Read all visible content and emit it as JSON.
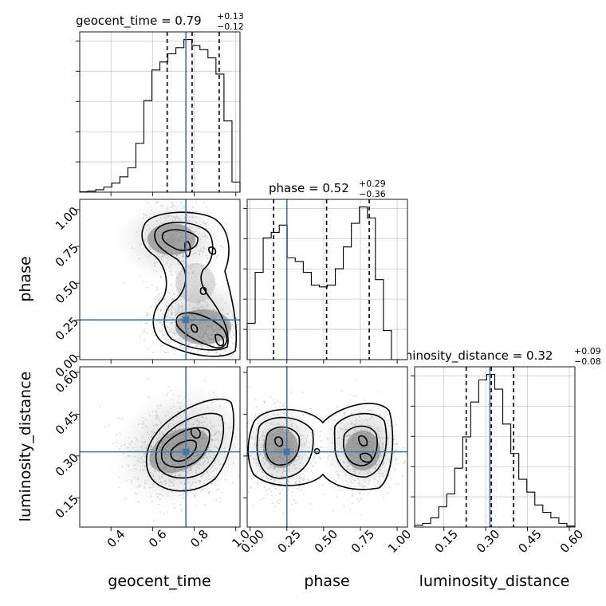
{
  "parameters": [
    "geocent_time",
    "phase",
    "luminosity_distance"
  ],
  "colors": {
    "truth": "#4577a6",
    "histogram": "#000000",
    "density": "#555555"
  },
  "diagonal_titles": [
    {
      "name": "geocent_time",
      "eq": " = 0.79",
      "sup": "+0.13",
      "sub": "−0.12"
    },
    {
      "name": "phase",
      "eq": " = 0.52",
      "sup": "+0.29",
      "sub": "−0.36"
    },
    {
      "name": "luminosity_distance",
      "eq": " = 0.32",
      "sup": "+0.09",
      "sub": "−0.08"
    }
  ],
  "axis_labels": {
    "x": [
      "geocent_time",
      "phase",
      "luminosity_distance"
    ],
    "y": [
      "phase",
      "luminosity_distance"
    ]
  },
  "chart_data": {
    "type": "corner",
    "parameters": [
      "geocent_time",
      "phase",
      "luminosity_distance"
    ],
    "truths": {
      "geocent_time": 0.76,
      "phase": 0.25,
      "luminosity_distance": 0.315
    },
    "ranges": {
      "geocent_time": [
        0.25,
        1.02
      ],
      "phase": [
        -0.02,
        1.07
      ],
      "luminosity_distance": [
        0.045,
        0.62
      ]
    },
    "ticks": {
      "geocent_time": {
        "values": [
          0.4,
          0.6,
          0.8,
          1.0
        ],
        "labels": [
          "0.4",
          "0.6",
          "0.8",
          "1.0"
        ]
      },
      "phase": {
        "values": [
          0.0,
          0.25,
          0.5,
          0.75,
          1.0
        ],
        "labels": [
          "0.00",
          "0.25",
          "0.50",
          "0.75",
          "1.00"
        ]
      },
      "luminosity_distance": {
        "values": [
          0.15,
          0.3,
          0.45,
          0.6
        ],
        "labels": [
          "0.15",
          "0.30",
          "0.45",
          "0.60"
        ]
      }
    },
    "marginals": [
      {
        "parameter": "geocent_time",
        "quantiles": [
          0.67,
          0.79,
          0.92
        ],
        "bin_edges": [
          0.25,
          0.2885,
          0.327,
          0.3655,
          0.404,
          0.4425,
          0.481,
          0.5195,
          0.558,
          0.5965,
          0.635,
          0.6735,
          0.712,
          0.7505,
          0.789,
          0.8275,
          0.866,
          0.9045,
          0.943,
          0.9815,
          1.02
        ],
        "counts": [
          0.2,
          0.5,
          1.2,
          2.5,
          4.5,
          7.5,
          12,
          24,
          45,
          60,
          64,
          68,
          71,
          75,
          72,
          70,
          66,
          58,
          35,
          5
        ]
      },
      {
        "parameter": "phase",
        "quantiles": [
          0.16,
          0.52,
          0.81
        ],
        "bin_edges": [
          -0.02,
          0.0345,
          0.089,
          0.1435,
          0.198,
          0.2525,
          0.307,
          0.3615,
          0.416,
          0.4705,
          0.525,
          0.5795,
          0.634,
          0.6885,
          0.743,
          0.7975,
          0.852,
          0.9065,
          0.961,
          1.0155,
          1.07
        ],
        "counts": [
          20,
          48,
          67,
          70,
          74,
          56,
          54,
          48,
          41,
          40,
          41,
          50,
          62,
          75,
          84,
          78,
          44,
          16,
          0,
          0
        ]
      },
      {
        "parameter": "luminosity_distance",
        "quantiles": [
          0.23,
          0.32,
          0.4
        ],
        "bin_edges": [
          0.045,
          0.07375,
          0.1025,
          0.13125,
          0.16,
          0.18875,
          0.2175,
          0.24625,
          0.275,
          0.30375,
          0.3325,
          0.36125,
          0.39,
          0.41875,
          0.4475,
          0.47625,
          0.505,
          0.53375,
          0.5625,
          0.59125,
          0.62
        ],
        "counts": [
          1,
          2,
          5,
          11,
          18,
          32,
          49,
          68,
          80,
          83,
          75,
          56,
          40,
          26,
          19,
          12,
          8,
          5,
          2,
          0.5
        ]
      }
    ],
    "pairs": [
      {
        "x": "geocent_time",
        "y": "phase",
        "modes": [
          [
            0.72,
            0.78
          ],
          [
            0.9,
            0.13
          ],
          [
            0.74,
            0.24
          ]
        ]
      },
      {
        "x": "geocent_time",
        "y": "luminosity_distance",
        "modes": [
          [
            0.72,
            0.31
          ]
        ]
      },
      {
        "x": "phase",
        "y": "luminosity_distance",
        "modes": [
          [
            0.18,
            0.31
          ],
          [
            0.77,
            0.31
          ]
        ]
      }
    ]
  }
}
